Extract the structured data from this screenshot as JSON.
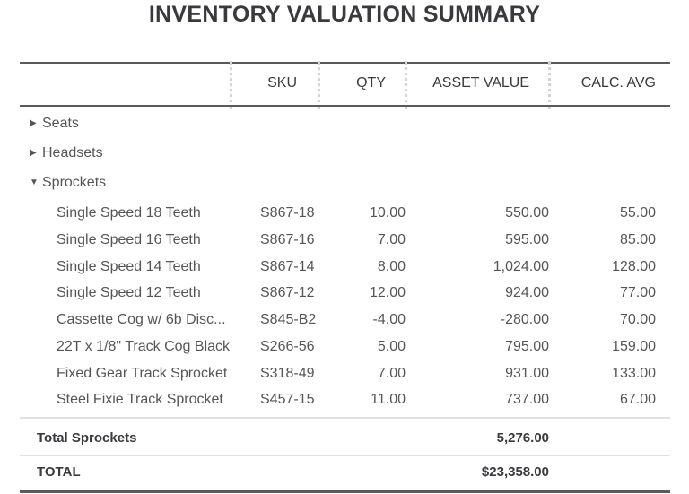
{
  "title": "INVENTORY VALUATION SUMMARY",
  "columns": {
    "sku": "SKU",
    "qty": "QTY",
    "asset_value": "ASSET VALUE",
    "calc_avg": "CALC. AVG"
  },
  "groups": [
    {
      "label": "Seats",
      "expanded": false
    },
    {
      "label": "Headsets",
      "expanded": false
    },
    {
      "label": "Sprockets",
      "expanded": true
    }
  ],
  "rows": [
    {
      "name": "Single Speed 18 Teeth",
      "sku": "S867-18",
      "qty": "10.00",
      "value": "550.00",
      "avg": "55.00"
    },
    {
      "name": "Single Speed 16 Teeth",
      "sku": "S867-16",
      "qty": "7.00",
      "value": "595.00",
      "avg": "85.00"
    },
    {
      "name": "Single Speed 14 Teeth",
      "sku": "S867-14",
      "qty": "8.00",
      "value": "1,024.00",
      "avg": "128.00"
    },
    {
      "name": "Single Speed 12 Teeth",
      "sku": "S867-12",
      "qty": "12.00",
      "value": "924.00",
      "avg": "77.00"
    },
    {
      "name": "Cassette Cog w/ 6b Disc...",
      "sku": "S845-B2",
      "qty": "-4.00",
      "value": "-280.00",
      "avg": "70.00"
    },
    {
      "name": "22T x 1/8\" Track Cog Black",
      "sku": "S266-56",
      "qty": "5.00",
      "value": "795.00",
      "avg": "159.00"
    },
    {
      "name": "Fixed Gear Track Sprocket",
      "sku": "S318-49",
      "qty": "7.00",
      "value": "931.00",
      "avg": "133.00"
    },
    {
      "name": "Steel Fixie Track Sprocket",
      "sku": "S457-15",
      "qty": "11.00",
      "value": "737.00",
      "avg": "67.00"
    }
  ],
  "subtotal": {
    "label": "Total Sprockets",
    "value": "5,276.00"
  },
  "total": {
    "label": "TOTAL",
    "value": "$23,358.00"
  }
}
